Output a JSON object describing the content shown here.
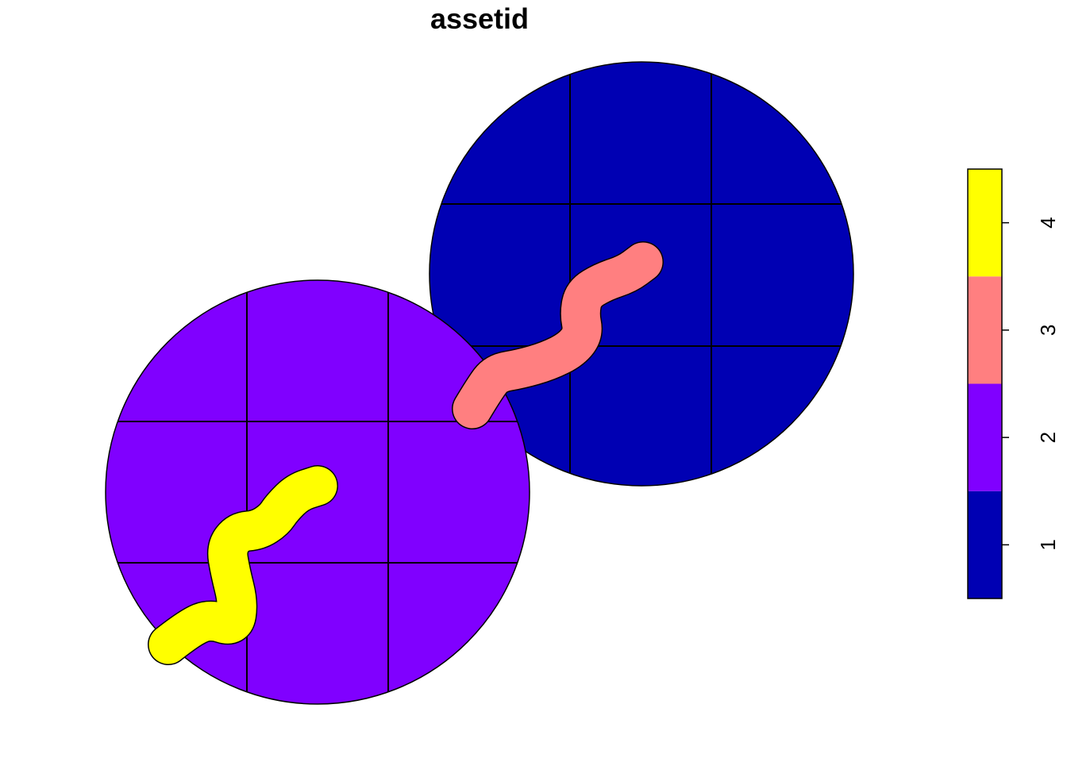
{
  "title": "assetid",
  "features": [
    {
      "assetid": 1,
      "color": "#0000B3"
    },
    {
      "assetid": 2,
      "color": "#8000FF"
    },
    {
      "assetid": 3,
      "color": "#FF7F80"
    },
    {
      "assetid": 4,
      "color": "#FFFF00"
    }
  ],
  "legend": {
    "lim": [
      0.5,
      4.5
    ],
    "ticks": [
      1,
      2,
      3,
      4
    ]
  }
}
